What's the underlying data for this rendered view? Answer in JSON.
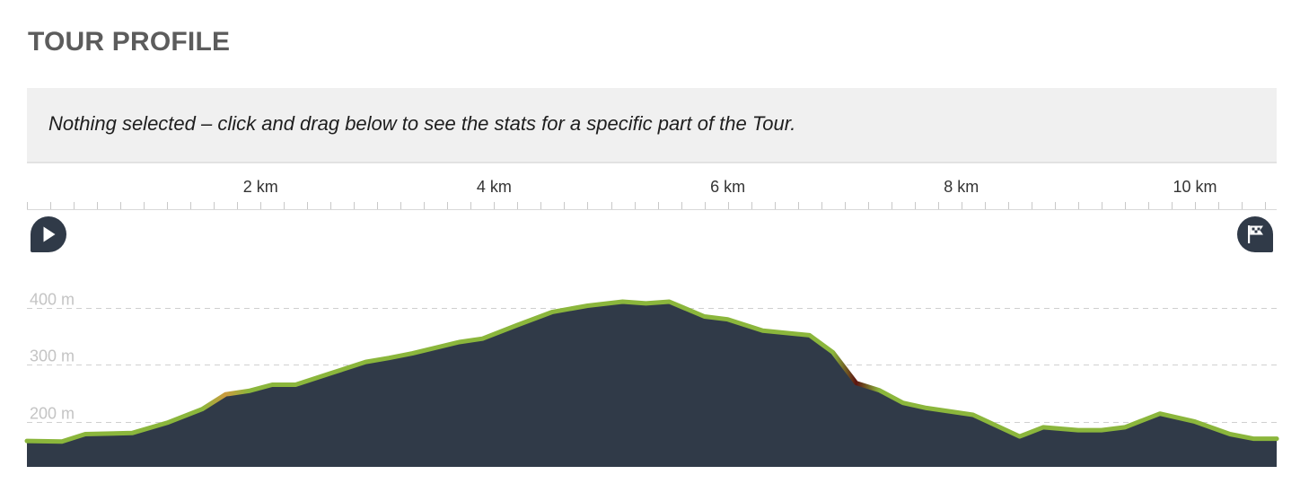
{
  "header": {
    "title": "TOUR PROFILE"
  },
  "selection": {
    "message": "Nothing selected – click and drag below to see the stats for a specific part of the Tour."
  },
  "markers": {
    "start": "play-icon",
    "end": "finish-flag-icon"
  },
  "colors": {
    "area": "#303a48",
    "line": "#8bb63c",
    "line_moderate": "#cc9a3e",
    "line_steep": "#5c1410",
    "grid": "#d0d0d0"
  },
  "chart_data": {
    "type": "area",
    "title": "",
    "xlabel": "",
    "ylabel": "",
    "x_unit": "km",
    "y_unit": "m",
    "xlim": [
      0,
      10.7
    ],
    "ylim": [
      120,
      400
    ],
    "x_ticks": [
      {
        "value": 2,
        "label": "2 km"
      },
      {
        "value": 4,
        "label": "4 km"
      },
      {
        "value": 6,
        "label": "6 km"
      },
      {
        "value": 8,
        "label": "8 km"
      },
      {
        "value": 10,
        "label": "10 km"
      }
    ],
    "y_ticks": [
      {
        "value": 200,
        "label": "200 m"
      },
      {
        "value": 300,
        "label": "300 m"
      },
      {
        "value": 400,
        "label": "400 m"
      }
    ],
    "grid": true,
    "x": [
      0,
      0.3,
      0.5,
      0.9,
      1.2,
      1.5,
      1.7,
      1.9,
      2.1,
      2.3,
      2.6,
      2.9,
      3.1,
      3.3,
      3.7,
      3.9,
      4.2,
      4.5,
      4.8,
      5.1,
      5.3,
      5.5,
      5.8,
      6.0,
      6.3,
      6.7,
      6.9,
      7.1,
      7.3,
      7.5,
      7.7,
      8.1,
      8.5,
      8.7,
      9.0,
      9.2,
      9.4,
      9.7,
      10.0,
      10.3,
      10.5,
      10.7
    ],
    "y": [
      166,
      165,
      178,
      180,
      198,
      222,
      248,
      254,
      265,
      265,
      285,
      305,
      312,
      320,
      340,
      346,
      370,
      393,
      404,
      411,
      408,
      411,
      385,
      380,
      360,
      352,
      322,
      268,
      255,
      233,
      224,
      212,
      174,
      190,
      185,
      185,
      190,
      214,
      200,
      178,
      170,
      170
    ],
    "grade_highlights": [
      {
        "from_km": 1.5,
        "to_km": 1.9,
        "level": "moderate"
      },
      {
        "from_km": 6.9,
        "to_km": 7.3,
        "level": "steep"
      }
    ]
  }
}
